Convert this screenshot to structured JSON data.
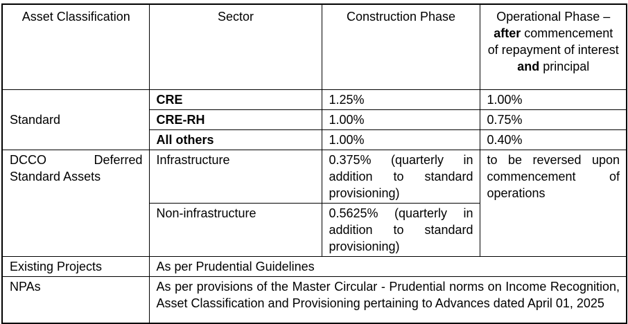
{
  "table": {
    "headers": {
      "asset_classification": "Asset Classification",
      "sector": "Sector",
      "construction_phase": "Construction Phase",
      "operational_phase": {
        "text_1": "Operational Phase – ",
        "bold_1": "after",
        "text_2": " commencement of repayment of interest ",
        "bold_2": "and",
        "text_3": " principal"
      }
    },
    "rows": {
      "standard": {
        "label": "Standard",
        "sectors": [
          {
            "name": "CRE",
            "construction": "1.25%",
            "operational": "1.00%"
          },
          {
            "name": "CRE-RH",
            "construction": "1.00%",
            "operational": "0.75%"
          },
          {
            "name": "All others",
            "construction": "1.00%",
            "operational": "0.40%"
          }
        ]
      },
      "dcco": {
        "label": "DCCO Deferred Standard Assets",
        "operational": "to be reversed upon commencement of operations",
        "sectors": [
          {
            "name": "Infrastructure",
            "construction": "0.375% (quarterly in addition to standard provisioning)"
          },
          {
            "name": "Non-infrastructure",
            "construction": "0.5625% (quarterly in addition to standard provisioning)"
          }
        ]
      },
      "existing_projects": {
        "label": "Existing Projects",
        "value": "As per Prudential Guidelines"
      },
      "npas": {
        "label": "NPAs",
        "value": "As per provisions of the Master Circular - Prudential norms on Income Recognition, Asset Classification and Provisioning pertaining to Advances dated April 01, 2025"
      }
    }
  }
}
